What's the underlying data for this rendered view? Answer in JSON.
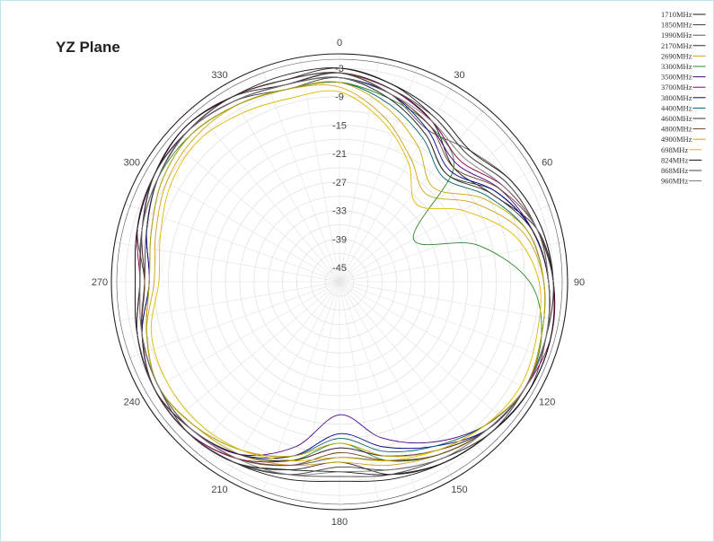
{
  "chart_data": {
    "type": "polar-line",
    "title": "YZ Plane",
    "angle_tick_labels": [
      "0",
      "30",
      "60",
      "90",
      "120",
      "150",
      "180",
      "210",
      "240",
      "270",
      "300",
      "330"
    ],
    "radial_tick_labels": [
      "-3",
      "-9",
      "-15",
      "-21",
      "-27",
      "-33",
      "-39",
      "-45"
    ],
    "radial_tick_values": [
      -3,
      -9,
      -15,
      -21,
      -27,
      -33,
      -39,
      -45
    ],
    "rlim": [
      -48,
      0
    ],
    "grid": true,
    "legend_position": "top-right",
    "series": [
      {
        "name": "1710MHz",
        "color": "#1a1a1a",
        "values": [
          -4,
          -6,
          -9,
          -14,
          -11,
          -5,
          -3,
          -2,
          -2,
          -3,
          -4,
          -6,
          -8,
          -7,
          -4,
          -3,
          -3,
          -4,
          -6,
          -5,
          -3,
          -2,
          -3,
          -5
        ]
      },
      {
        "name": "1850MHz",
        "color": "#3a3a3a",
        "values": [
          -5,
          -8,
          -12,
          -16,
          -10,
          -6,
          -4,
          -3,
          -2,
          -3,
          -5,
          -7,
          -9,
          -6,
          -4,
          -3,
          -4,
          -5,
          -7,
          -4,
          -3,
          -3,
          -4,
          -6
        ]
      },
      {
        "name": "1990MHz",
        "color": "#555555",
        "values": [
          -4,
          -7,
          -11,
          -9,
          -6,
          -4,
          -3,
          -3,
          -3,
          -4,
          -6,
          -9,
          -11,
          -8,
          -5,
          -3,
          -3,
          -4,
          -5,
          -4,
          -3,
          -3,
          -4,
          -5
        ]
      },
      {
        "name": "2170MHz",
        "color": "#262626",
        "values": [
          -3,
          -5,
          -8,
          -10,
          -7,
          -5,
          -3,
          -2,
          -2,
          -3,
          -4,
          -6,
          -10,
          -7,
          -4,
          -3,
          -3,
          -5,
          -8,
          -6,
          -4,
          -3,
          -3,
          -4
        ]
      },
      {
        "name": "2690MHz",
        "color": "#d4a017",
        "values": [
          -7,
          -12,
          -18,
          -22,
          -15,
          -8,
          -5,
          -4,
          -3,
          -4,
          -6,
          -8,
          -10,
          -8,
          -6,
          -5,
          -4,
          -6,
          -9,
          -8,
          -6,
          -5,
          -5,
          -6
        ]
      },
      {
        "name": "3300MHz",
        "color": "#2b8a2b",
        "values": [
          -6,
          -8,
          -10,
          -14,
          -30,
          -18,
          -8,
          -4,
          -3,
          -4,
          -6,
          -9,
          -14,
          -9,
          -6,
          -4,
          -4,
          -5,
          -6,
          -5,
          -4,
          -4,
          -5,
          -6
        ]
      },
      {
        "name": "3500MHz",
        "color": "#4b0082",
        "values": [
          -5,
          -7,
          -10,
          -13,
          -9,
          -6,
          -4,
          -3,
          -3,
          -5,
          -9,
          -14,
          -20,
          -12,
          -6,
          -4,
          -3,
          -5,
          -7,
          -5,
          -3,
          -3,
          -4,
          -5
        ]
      },
      {
        "name": "3700MHz",
        "color": "#8b0050",
        "values": [
          -4,
          -6,
          -9,
          -12,
          -8,
          -5,
          -3,
          -2,
          -3,
          -4,
          -7,
          -10,
          -13,
          -9,
          -5,
          -3,
          -3,
          -4,
          -6,
          -4,
          -3,
          -2,
          -3,
          -4
        ]
      },
      {
        "name": "3800MHz",
        "color": "#00008b",
        "values": [
          -5,
          -7,
          -11,
          -15,
          -10,
          -6,
          -4,
          -3,
          -3,
          -4,
          -8,
          -12,
          -16,
          -10,
          -6,
          -4,
          -3,
          -5,
          -8,
          -6,
          -4,
          -3,
          -4,
          -5
        ]
      },
      {
        "name": "4400MHz",
        "color": "#006666",
        "values": [
          -6,
          -9,
          -13,
          -17,
          -12,
          -7,
          -5,
          -4,
          -3,
          -5,
          -8,
          -11,
          -15,
          -10,
          -7,
          -5,
          -4,
          -6,
          -8,
          -7,
          -5,
          -4,
          -5,
          -6
        ]
      },
      {
        "name": "4600MHz",
        "color": "#333333",
        "values": [
          -5,
          -8,
          -12,
          -16,
          -11,
          -6,
          -4,
          -3,
          -3,
          -4,
          -7,
          -10,
          -13,
          -9,
          -6,
          -4,
          -4,
          -5,
          -7,
          -6,
          -4,
          -3,
          -4,
          -5
        ]
      },
      {
        "name": "4800MHz",
        "color": "#6b4226",
        "values": [
          -4,
          -7,
          -10,
          -14,
          -9,
          -5,
          -4,
          -3,
          -3,
          -4,
          -6,
          -9,
          -12,
          -8,
          -5,
          -4,
          -3,
          -5,
          -7,
          -5,
          -4,
          -3,
          -3,
          -4
        ]
      },
      {
        "name": "4900MHz",
        "color": "#c8a800",
        "values": [
          -6,
          -10,
          -15,
          -20,
          -13,
          -7,
          -5,
          -4,
          -3,
          -5,
          -7,
          -10,
          -14,
          -10,
          -7,
          -5,
          -4,
          -6,
          -8,
          -7,
          -5,
          -4,
          -5,
          -6
        ]
      },
      {
        "name": "698MHz",
        "color": "#e0b800",
        "values": [
          -8,
          -13,
          -19,
          -25,
          -18,
          -10,
          -6,
          -5,
          -4,
          -5,
          -7,
          -9,
          -11,
          -9,
          -7,
          -6,
          -6,
          -7,
          -10,
          -9,
          -7,
          -6,
          -7,
          -8
        ]
      },
      {
        "name": "824MHz",
        "color": "#111111",
        "values": [
          -3,
          -5,
          -7,
          -9,
          -6,
          -4,
          -3,
          -2,
          -2,
          -3,
          -4,
          -5,
          -6,
          -5,
          -4,
          -3,
          -3,
          -4,
          -5,
          -4,
          -3,
          -2,
          -3,
          -3
        ]
      },
      {
        "name": "868MHz",
        "color": "#444444",
        "values": [
          -4,
          -6,
          -8,
          -10,
          -7,
          -5,
          -3,
          -3,
          -3,
          -3,
          -5,
          -6,
          -7,
          -6,
          -4,
          -3,
          -3,
          -4,
          -6,
          -5,
          -3,
          -3,
          -3,
          -4
        ]
      },
      {
        "name": "960MHz",
        "color": "#777777",
        "values": [
          -5,
          -7,
          -9,
          -11,
          -8,
          -5,
          -4,
          -3,
          -3,
          -4,
          -5,
          -7,
          -8,
          -6,
          -5,
          -4,
          -4,
          -5,
          -6,
          -5,
          -4,
          -3,
          -4,
          -5
        ]
      }
    ]
  }
}
